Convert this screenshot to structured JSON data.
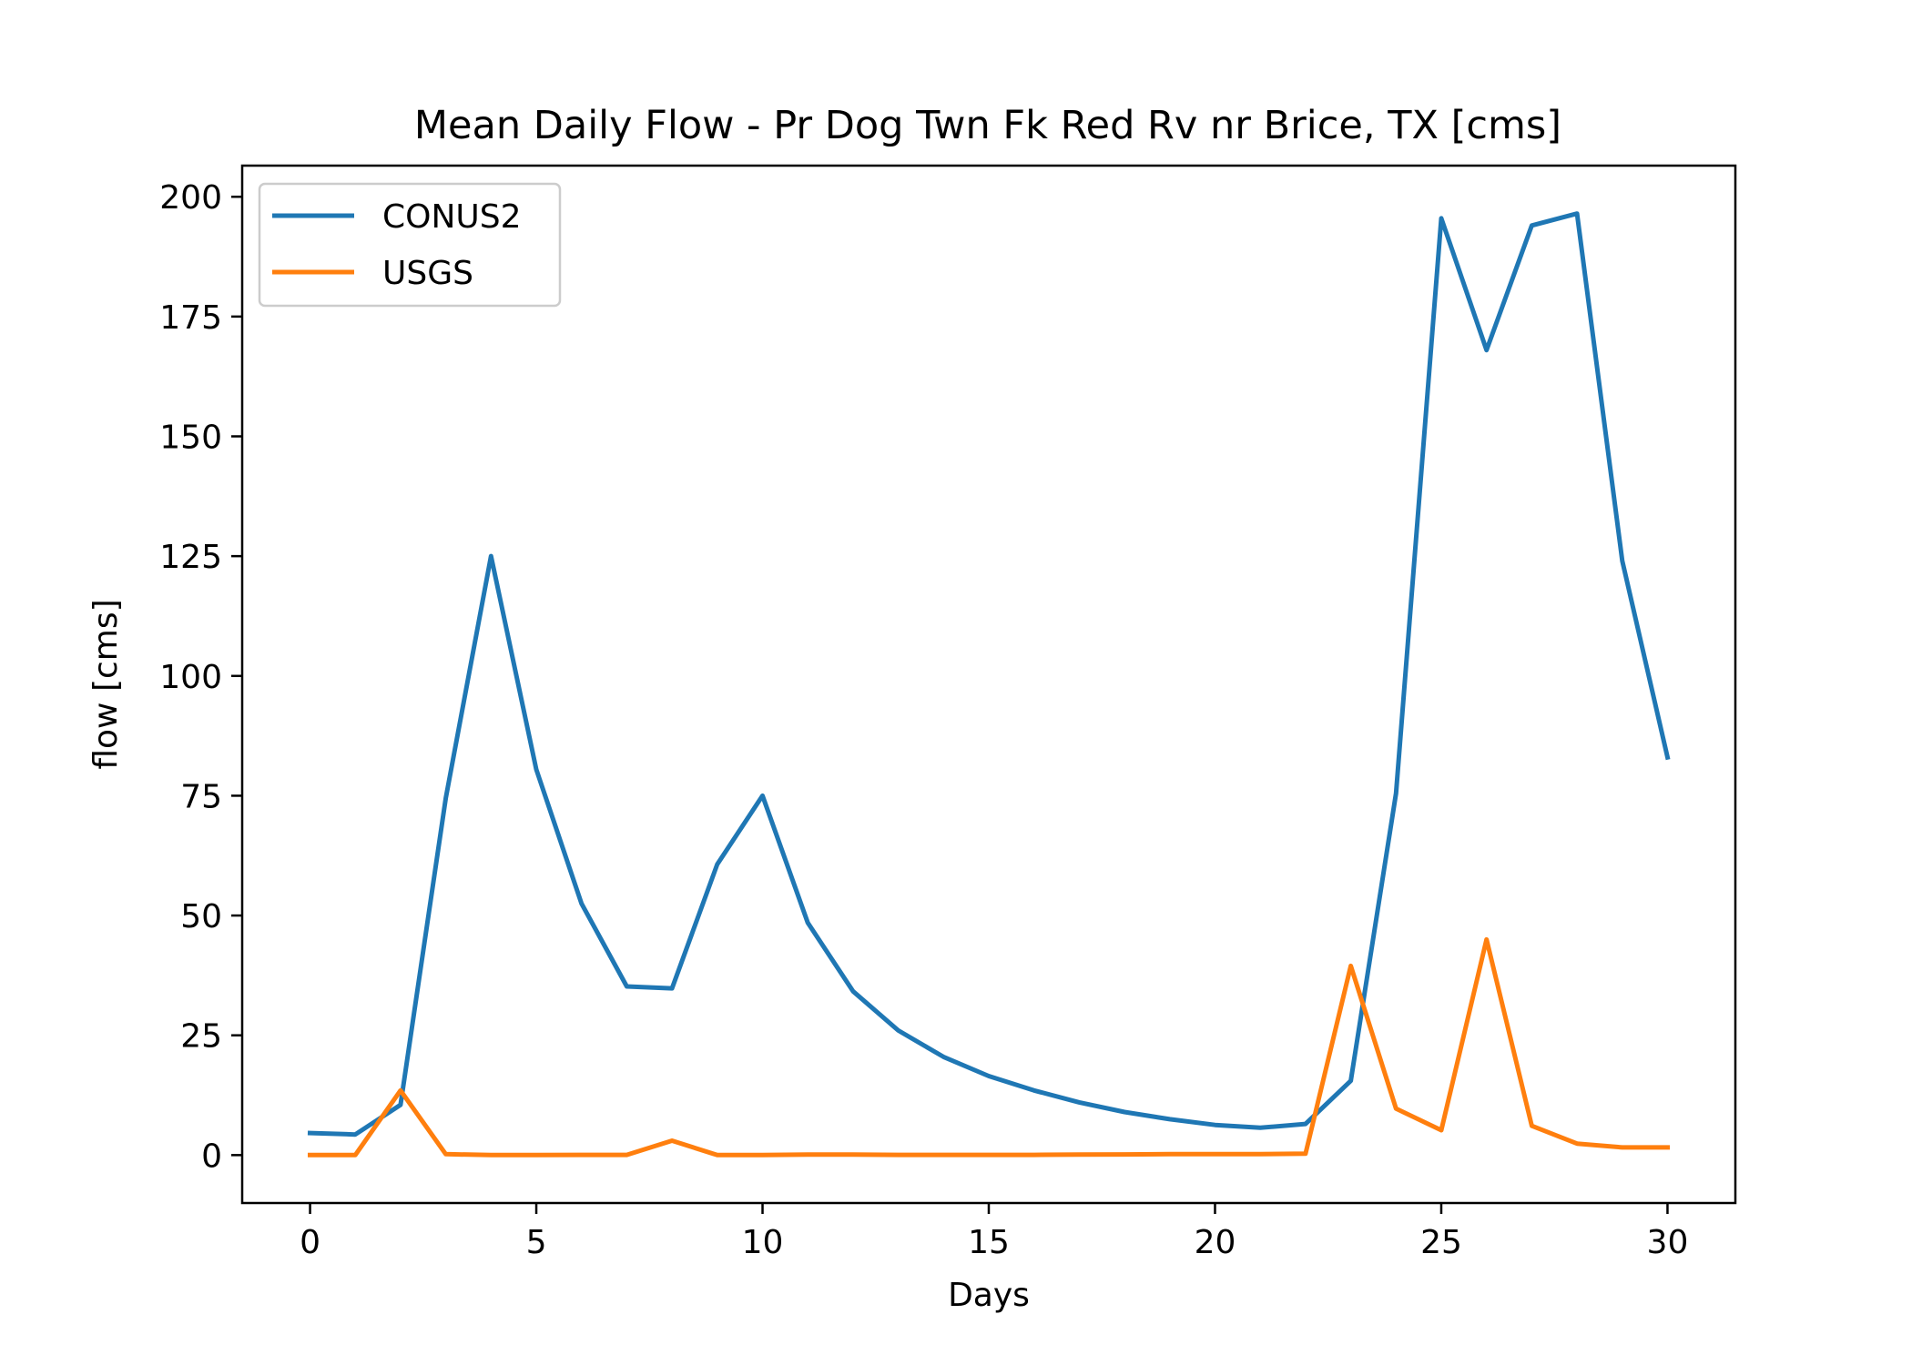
{
  "chart_data": {
    "type": "line",
    "title": "Mean Daily Flow - Pr Dog Twn Fk Red Rv nr Brice, TX [cms]",
    "xlabel": "Days",
    "ylabel": "flow [cms]",
    "xlim": [
      -1.5,
      31.5
    ],
    "ylim": [
      -10,
      206.5
    ],
    "xticks": [
      0,
      5,
      10,
      15,
      20,
      25,
      30
    ],
    "yticks": [
      0,
      25,
      50,
      75,
      100,
      125,
      150,
      175,
      200
    ],
    "grid": false,
    "legend_position": "top-left",
    "x": [
      0,
      1,
      2,
      3,
      4,
      5,
      6,
      7,
      8,
      9,
      10,
      11,
      12,
      13,
      14,
      15,
      16,
      17,
      18,
      19,
      20,
      21,
      22,
      23,
      24,
      25,
      26,
      27,
      28,
      29,
      30
    ],
    "series": [
      {
        "name": "CONUS2",
        "color": "#1f77b4",
        "values": [
          4.6,
          4.3,
          10.5,
          74.5,
          125.0,
          80.5,
          52.5,
          35.2,
          34.8,
          60.7,
          75.0,
          48.5,
          34.2,
          26.0,
          20.5,
          16.5,
          13.5,
          11.0,
          9.0,
          7.5,
          6.3,
          5.7,
          6.5,
          15.5,
          75.5,
          195.5,
          168.0,
          194.0,
          196.5,
          124.0,
          83.0
        ]
      },
      {
        "name": "USGS",
        "color": "#ff7f0e",
        "values": [
          0.0,
          0.0,
          13.5,
          0.2,
          0.0,
          0.0,
          0.05,
          0.05,
          3.0,
          0.0,
          0.0,
          0.1,
          0.1,
          0.05,
          0.05,
          0.05,
          0.05,
          0.1,
          0.15,
          0.2,
          0.2,
          0.2,
          0.3,
          39.5,
          9.7,
          5.2,
          45.0,
          6.1,
          2.4,
          1.6,
          1.6
        ]
      }
    ]
  }
}
